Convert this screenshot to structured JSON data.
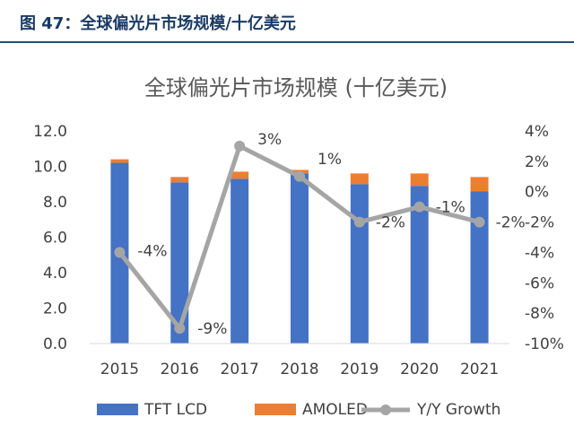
{
  "figure": {
    "caption": "图 47：全球偏光片市场规模/十亿美元"
  },
  "chart_data": {
    "type": "bar",
    "title": "全球偏光片市场规模 (十亿美元)",
    "categories": [
      "2015",
      "2016",
      "2017",
      "2018",
      "2019",
      "2020",
      "2021"
    ],
    "series": [
      {
        "name": "TFT LCD",
        "kind": "bar",
        "axis": "left",
        "color": "#4472C4",
        "values": [
          10.2,
          9.1,
          9.3,
          9.6,
          9.0,
          8.9,
          8.6
        ]
      },
      {
        "name": "AMOLED",
        "kind": "bar",
        "stacked": true,
        "axis": "left",
        "color": "#ED7D31",
        "values": [
          0.2,
          0.3,
          0.4,
          0.2,
          0.6,
          0.7,
          0.8
        ]
      },
      {
        "name": "Y/Y Growth",
        "kind": "line",
        "axis": "right",
        "color": "#A5A5A5",
        "values": [
          -4,
          -9,
          3,
          1,
          -2,
          -1,
          -2
        ],
        "data_labels": [
          "-4%",
          "-9%",
          "3%",
          "1%",
          "-2%",
          "-1%",
          "-2%"
        ]
      }
    ],
    "y_left": {
      "min": 0,
      "max": 12,
      "ticks": [
        "0.0",
        "2.0",
        "4.0",
        "6.0",
        "8.0",
        "10.0",
        "12.0"
      ]
    },
    "y_right": {
      "min": -10,
      "max": 4,
      "ticks": [
        "-10%",
        "-8%",
        "-6%",
        "-4%",
        "-2%",
        "0%",
        "2%",
        "4%"
      ]
    },
    "grid": false,
    "legend": {
      "position": "bottom",
      "items": [
        "TFT LCD",
        "AMOLED",
        "Y/Y Growth"
      ]
    }
  }
}
